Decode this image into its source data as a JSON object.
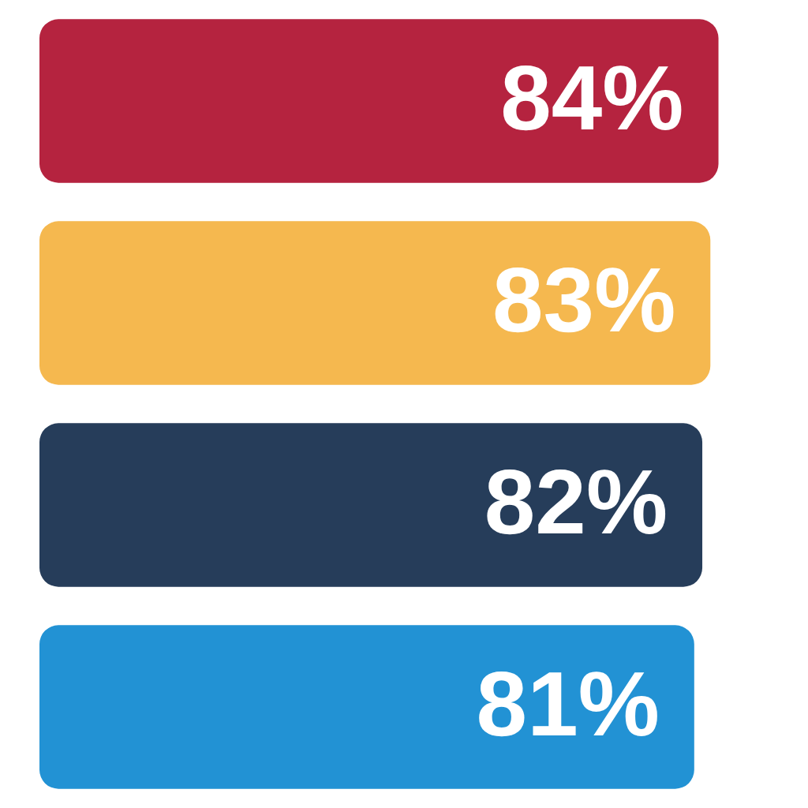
{
  "chart_data": {
    "type": "bar",
    "orientation": "horizontal",
    "categories": [
      null,
      null,
      null,
      null
    ],
    "values": [
      84,
      83,
      82,
      81
    ],
    "value_labels": [
      "84%",
      "83%",
      "82%",
      "81%"
    ],
    "colors": [
      "#b5233f",
      "#f5b84f",
      "#263d5a",
      "#2292d4"
    ],
    "tick_labels": false
  }
}
